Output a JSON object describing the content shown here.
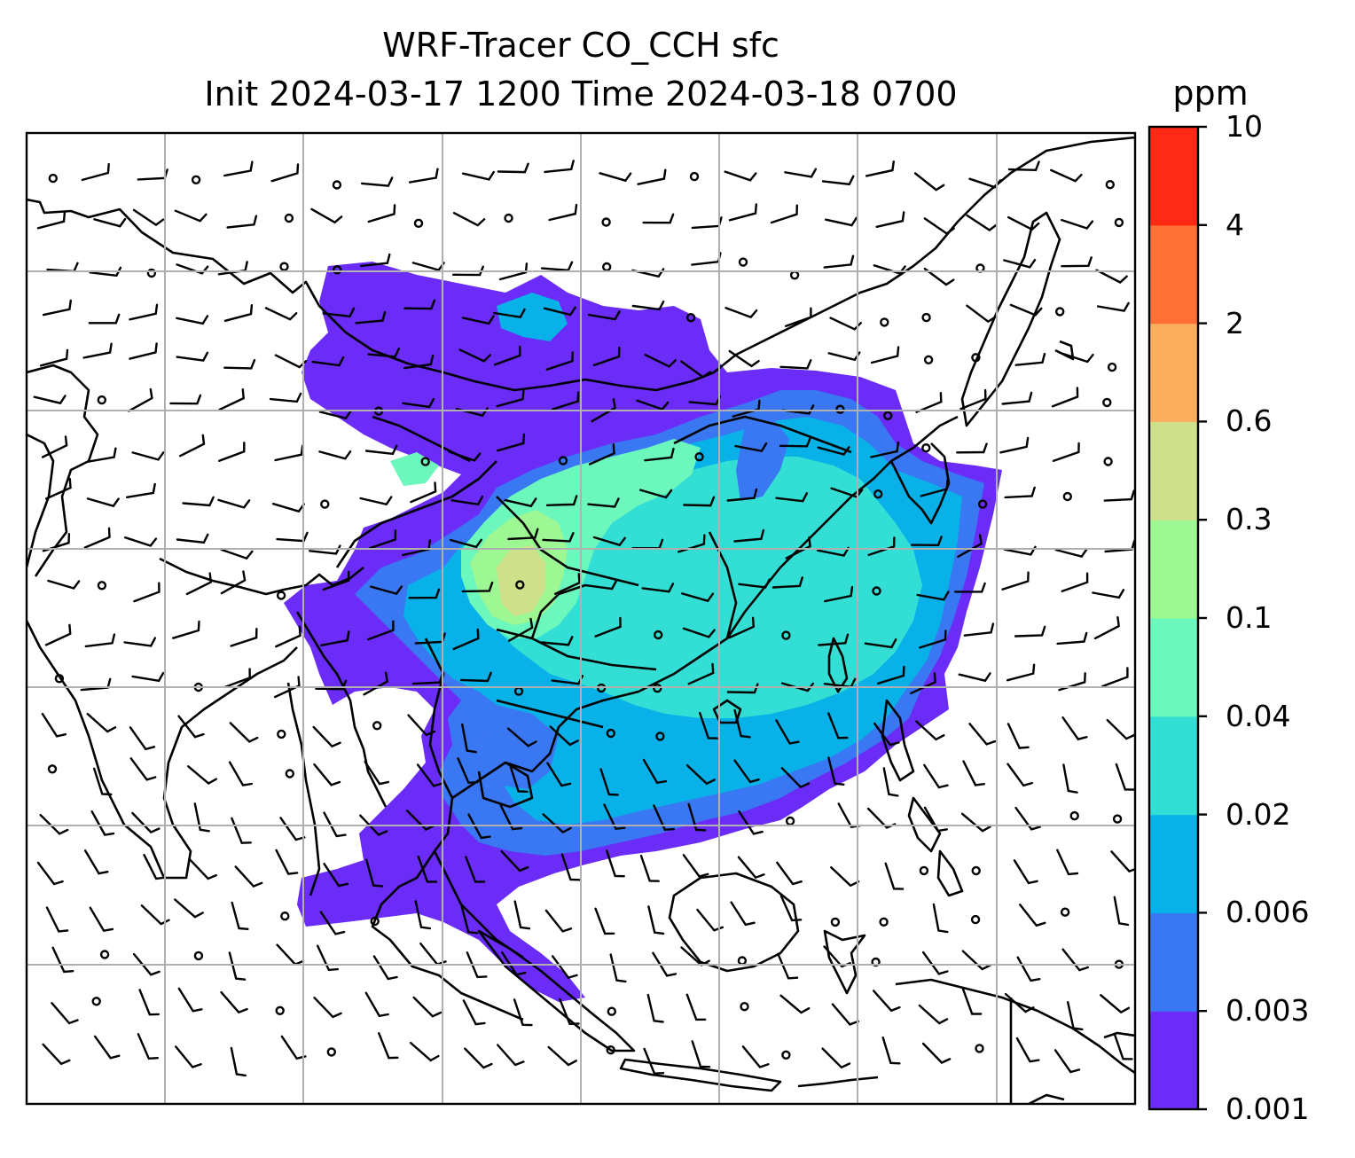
{
  "chart_data": {
    "type": "heatmap",
    "title": "WRF-Tracer CO_CCH sfc",
    "subtitle": "Init 2024-03-17 1200 Time 2024-03-18 0700",
    "colorbar": {
      "unit_label": "ppm",
      "levels": [
        "0.001",
        "0.003",
        "0.006",
        "0.02",
        "0.04",
        "0.1",
        "0.3",
        "0.6",
        "2",
        "4",
        "10"
      ],
      "colors": [
        "#6a2cf6",
        "#3a77f2",
        "#08b2e8",
        "#33dfd4",
        "#6cf7bc",
        "#9df893",
        "#cfe08a",
        "#fbae5e",
        "#ff7037",
        "#ff2a16"
      ]
    },
    "grid": true,
    "overlays": [
      "coastlines",
      "wind barbs"
    ],
    "field_regions": [
      {
        "level": "0.001",
        "area": "outer plume envelope over South & East Asia"
      },
      {
        "level": "0.02",
        "area": "eastern China and adjacent seas"
      },
      {
        "level": "0.04",
        "area": "central and eastern China"
      },
      {
        "level": "0.1",
        "area": "Sichuan Basin and surroundings"
      },
      {
        "level": "0.3",
        "area": "Sichuan Basin core"
      }
    ]
  }
}
